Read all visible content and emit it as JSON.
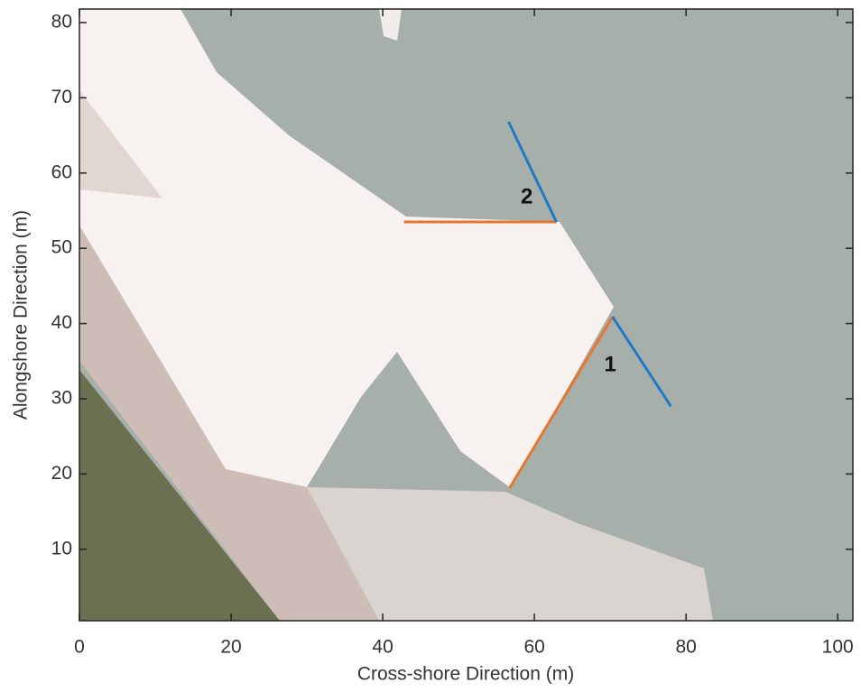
{
  "chart_data": {
    "type": "line",
    "x_label": "Cross-shore Direction (m)",
    "y_label": "Alongshore Direction (m)",
    "xlim": [
      0,
      102
    ],
    "ylim": [
      0.5,
      81.8
    ],
    "xticks": [
      0,
      20,
      40,
      60,
      80,
      100
    ],
    "yticks": [
      10,
      20,
      30,
      40,
      50,
      60,
      70,
      80
    ],
    "series": [
      {
        "color": "#e8772e",
        "x": [
          56.7,
          70.3
        ],
        "values": [
          18.1,
          40.9
        ]
      },
      {
        "color": "#1f78c8",
        "x": [
          70.3,
          78.0
        ],
        "values": [
          40.9,
          29.0
        ]
      },
      {
        "color": "#e8772e",
        "x": [
          42.8,
          62.9
        ],
        "values": [
          53.5,
          53.5
        ]
      },
      {
        "color": "#1f78c8",
        "x": [
          56.6,
          62.9
        ],
        "values": [
          66.8,
          53.5
        ]
      }
    ],
    "annotations": [
      {
        "text": "1",
        "x": 70.0,
        "y": 34.4
      },
      {
        "text": "2",
        "x": 59.0,
        "y": 56.7
      }
    ]
  }
}
